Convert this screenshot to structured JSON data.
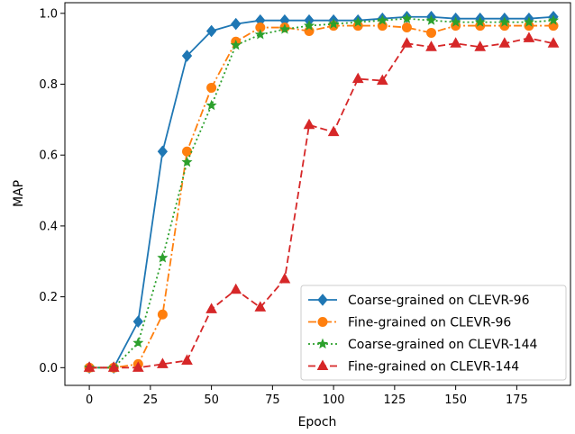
{
  "chart_data": {
    "type": "line",
    "title": "",
    "xlabel": "Epoch",
    "ylabel": "MAP",
    "xlim": [
      -10,
      197
    ],
    "ylim": [
      -0.05,
      1.03
    ],
    "xticks": [
      0,
      25,
      50,
      75,
      100,
      125,
      150,
      175
    ],
    "yticks": [
      0.0,
      0.2,
      0.4,
      0.6,
      0.8,
      1.0
    ],
    "xtick_labels": [
      "0",
      "25",
      "50",
      "75",
      "100",
      "125",
      "150",
      "175"
    ],
    "ytick_labels": [
      "0.0",
      "0.2",
      "0.4",
      "0.6",
      "0.8",
      "1.0"
    ],
    "grid": false,
    "legend_position": "lower-right",
    "x": [
      0,
      10,
      20,
      30,
      40,
      50,
      60,
      70,
      80,
      90,
      100,
      110,
      120,
      130,
      140,
      150,
      160,
      170,
      180,
      190
    ],
    "series": [
      {
        "name": "Coarse-grained on CLEVR-96",
        "color": "#1f77b4",
        "line_style": "solid",
        "marker": "diamond",
        "values": [
          0.0,
          0.0,
          0.13,
          0.61,
          0.88,
          0.95,
          0.97,
          0.98,
          0.98,
          0.98,
          0.98,
          0.98,
          0.985,
          0.99,
          0.99,
          0.985,
          0.985,
          0.985,
          0.985,
          0.99
        ]
      },
      {
        "name": "Fine-grained on CLEVR-96",
        "color": "#ff7f0e",
        "line_style": "dashdot",
        "marker": "circle",
        "values": [
          0.0,
          0.0,
          0.01,
          0.15,
          0.61,
          0.79,
          0.92,
          0.96,
          0.96,
          0.95,
          0.965,
          0.965,
          0.965,
          0.96,
          0.945,
          0.965,
          0.965,
          0.965,
          0.965,
          0.965
        ]
      },
      {
        "name": "Coarse-grained on CLEVR-144",
        "color": "#2ca02c",
        "line_style": "dotted",
        "marker": "star",
        "values": [
          0.0,
          0.0,
          0.07,
          0.31,
          0.58,
          0.74,
          0.91,
          0.94,
          0.955,
          0.965,
          0.97,
          0.975,
          0.98,
          0.985,
          0.98,
          0.975,
          0.975,
          0.975,
          0.975,
          0.98
        ]
      },
      {
        "name": "Fine-grained on CLEVR-144",
        "color": "#d62728",
        "line_style": "dashed",
        "marker": "triangle",
        "values": [
          0.0,
          0.0,
          0.0,
          0.01,
          0.02,
          0.165,
          0.22,
          0.17,
          0.25,
          0.685,
          0.665,
          0.815,
          0.81,
          0.915,
          0.905,
          0.915,
          0.905,
          0.915,
          0.93,
          0.915
        ]
      }
    ]
  }
}
